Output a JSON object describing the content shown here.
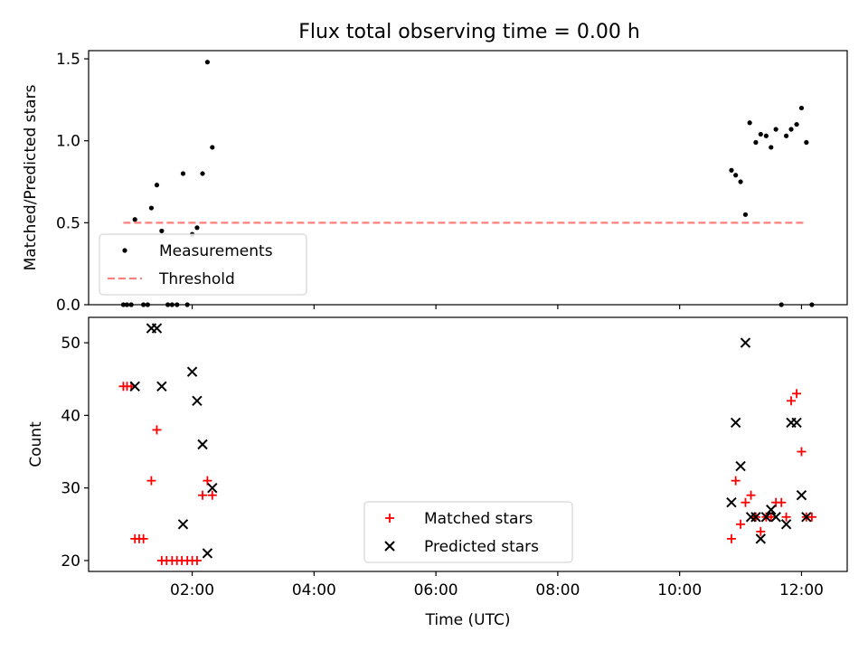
{
  "figure": {
    "title": "Flux total observing time = 0.00 h"
  },
  "chart_data": [
    {
      "type": "scatter",
      "panel": "top",
      "xlabel": "",
      "ylabel": "Matched/Predicted stars",
      "xlim_hours": [
        0.3,
        12.75
      ],
      "ylim": [
        0,
        1.55
      ],
      "yticks": [
        0.0,
        0.5,
        1.0,
        1.5
      ],
      "ytick_labels": [
        "0.0",
        "0.5",
        "1.0",
        "1.5"
      ],
      "grid": false,
      "legend_position": "lower-left",
      "series": [
        {
          "name": "Measurements",
          "kind": "scatter",
          "marker": "dot",
          "color": "#000000",
          "points": [
            [
              0.87,
              0.0
            ],
            [
              0.93,
              0.0
            ],
            [
              1.0,
              0.0
            ],
            [
              1.06,
              0.52
            ],
            [
              1.2,
              0.0
            ],
            [
              1.27,
              0.0
            ],
            [
              1.33,
              0.59
            ],
            [
              1.42,
              0.73
            ],
            [
              1.5,
              0.45
            ],
            [
              1.6,
              0.0
            ],
            [
              1.67,
              0.0
            ],
            [
              1.75,
              0.0
            ],
            [
              1.85,
              0.8
            ],
            [
              1.92,
              0.0
            ],
            [
              2.0,
              0.43
            ],
            [
              2.08,
              0.47
            ],
            [
              2.17,
              0.8
            ],
            [
              2.25,
              1.48
            ],
            [
              2.33,
              0.96
            ],
            [
              10.85,
              0.82
            ],
            [
              10.92,
              0.79
            ],
            [
              11.0,
              0.75
            ],
            [
              11.08,
              0.55
            ],
            [
              11.15,
              1.11
            ],
            [
              11.25,
              0.99
            ],
            [
              11.33,
              1.04
            ],
            [
              11.42,
              1.03
            ],
            [
              11.5,
              0.96
            ],
            [
              11.58,
              1.07
            ],
            [
              11.75,
              1.03
            ],
            [
              11.83,
              1.07
            ],
            [
              11.92,
              1.1
            ],
            [
              12.0,
              1.2
            ],
            [
              12.08,
              0.99
            ],
            [
              11.67,
              0.0
            ],
            [
              12.17,
              0.0
            ]
          ]
        },
        {
          "name": "Threshold",
          "kind": "line",
          "style": "dashed",
          "color": "#ff7f7f",
          "x": [
            0.87,
            12.08
          ],
          "y": [
            0.5,
            0.5
          ]
        }
      ]
    },
    {
      "type": "scatter",
      "panel": "bottom",
      "xlabel": "Time (UTC)",
      "ylabel": "Count",
      "xlim_hours": [
        0.3,
        12.75
      ],
      "xticks_hours": [
        2,
        4,
        6,
        8,
        10,
        12
      ],
      "xtick_labels": [
        "02:00",
        "04:00",
        "06:00",
        "08:00",
        "10:00",
        "12:00"
      ],
      "ylim": [
        18.5,
        53.5
      ],
      "yticks": [
        20,
        30,
        40,
        50
      ],
      "ytick_labels": [
        "20",
        "30",
        "40",
        "50"
      ],
      "grid": false,
      "legend_position": "lower-center",
      "series": [
        {
          "name": "Matched stars",
          "marker": "plus",
          "color": "#ff0000",
          "points": [
            [
              0.87,
              44
            ],
            [
              0.93,
              44
            ],
            [
              1.0,
              44
            ],
            [
              1.06,
              23
            ],
            [
              1.13,
              23
            ],
            [
              1.2,
              23
            ],
            [
              1.33,
              31
            ],
            [
              1.42,
              38
            ],
            [
              1.5,
              20
            ],
            [
              1.58,
              20
            ],
            [
              1.67,
              20
            ],
            [
              1.75,
              20
            ],
            [
              1.83,
              20
            ],
            [
              1.92,
              20
            ],
            [
              2.0,
              20
            ],
            [
              2.08,
              20
            ],
            [
              2.17,
              29
            ],
            [
              2.25,
              31
            ],
            [
              2.33,
              29
            ],
            [
              10.85,
              23
            ],
            [
              10.92,
              31
            ],
            [
              11.0,
              25
            ],
            [
              11.08,
              28
            ],
            [
              11.17,
              29
            ],
            [
              11.25,
              26
            ],
            [
              11.33,
              24
            ],
            [
              11.42,
              26
            ],
            [
              11.5,
              26
            ],
            [
              11.58,
              28
            ],
            [
              11.67,
              28
            ],
            [
              11.75,
              26
            ],
            [
              11.83,
              42
            ],
            [
              11.92,
              43
            ],
            [
              12.0,
              35
            ],
            [
              12.08,
              26
            ],
            [
              12.17,
              26
            ]
          ]
        },
        {
          "name": "Predicted stars",
          "marker": "x",
          "color": "#000000",
          "points": [
            [
              1.06,
              44
            ],
            [
              1.33,
              52
            ],
            [
              1.42,
              52
            ],
            [
              1.5,
              44
            ],
            [
              1.85,
              25
            ],
            [
              2.0,
              46
            ],
            [
              2.08,
              42
            ],
            [
              2.17,
              36
            ],
            [
              2.25,
              21
            ],
            [
              2.33,
              30
            ],
            [
              10.85,
              28
            ],
            [
              10.92,
              39
            ],
            [
              11.0,
              33
            ],
            [
              11.08,
              50
            ],
            [
              11.17,
              26
            ],
            [
              11.25,
              26
            ],
            [
              11.33,
              23
            ],
            [
              11.42,
              26
            ],
            [
              11.5,
              27
            ],
            [
              11.58,
              26
            ],
            [
              11.75,
              25
            ],
            [
              11.83,
              39
            ],
            [
              11.92,
              39
            ],
            [
              12.0,
              29
            ],
            [
              12.08,
              26
            ]
          ]
        }
      ]
    }
  ]
}
